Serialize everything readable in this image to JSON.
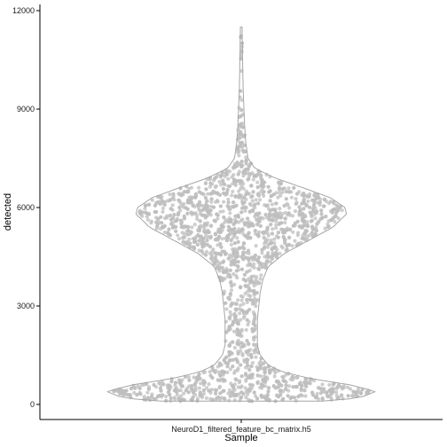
{
  "chart_data": {
    "type": "violin",
    "xlabel": "Sample",
    "ylabel": "detected",
    "categories": [
      "NeuroD1_filtered_feature_bc_matrix.h5"
    ],
    "ylim": [
      -500,
      12200
    ],
    "yticks": [
      0,
      3000,
      6000,
      9000,
      12000
    ],
    "grid": false,
    "legend": "none",
    "point_color": "#bdbdbd",
    "outline_color": "#a6a6a6",
    "density_profile": {
      "y": [
        100,
        200,
        400,
        600,
        800,
        1000,
        1200,
        1500,
        1800,
        2200,
        2600,
        3000,
        3400,
        3800,
        4200,
        4600,
        5000,
        5400,
        5800,
        6000,
        6300,
        6600,
        6900,
        7200,
        7500,
        8000,
        8500,
        9000,
        9500,
        10000,
        10500,
        11000,
        11500
      ],
      "relative_width": [
        0.6,
        0.88,
        1.0,
        0.8,
        0.5,
        0.3,
        0.2,
        0.14,
        0.12,
        0.12,
        0.12,
        0.13,
        0.14,
        0.16,
        0.2,
        0.32,
        0.5,
        0.68,
        0.78,
        0.77,
        0.66,
        0.46,
        0.25,
        0.1,
        0.05,
        0.033,
        0.025,
        0.02,
        0.015,
        0.012,
        0.01,
        0.008,
        0.006
      ]
    }
  }
}
